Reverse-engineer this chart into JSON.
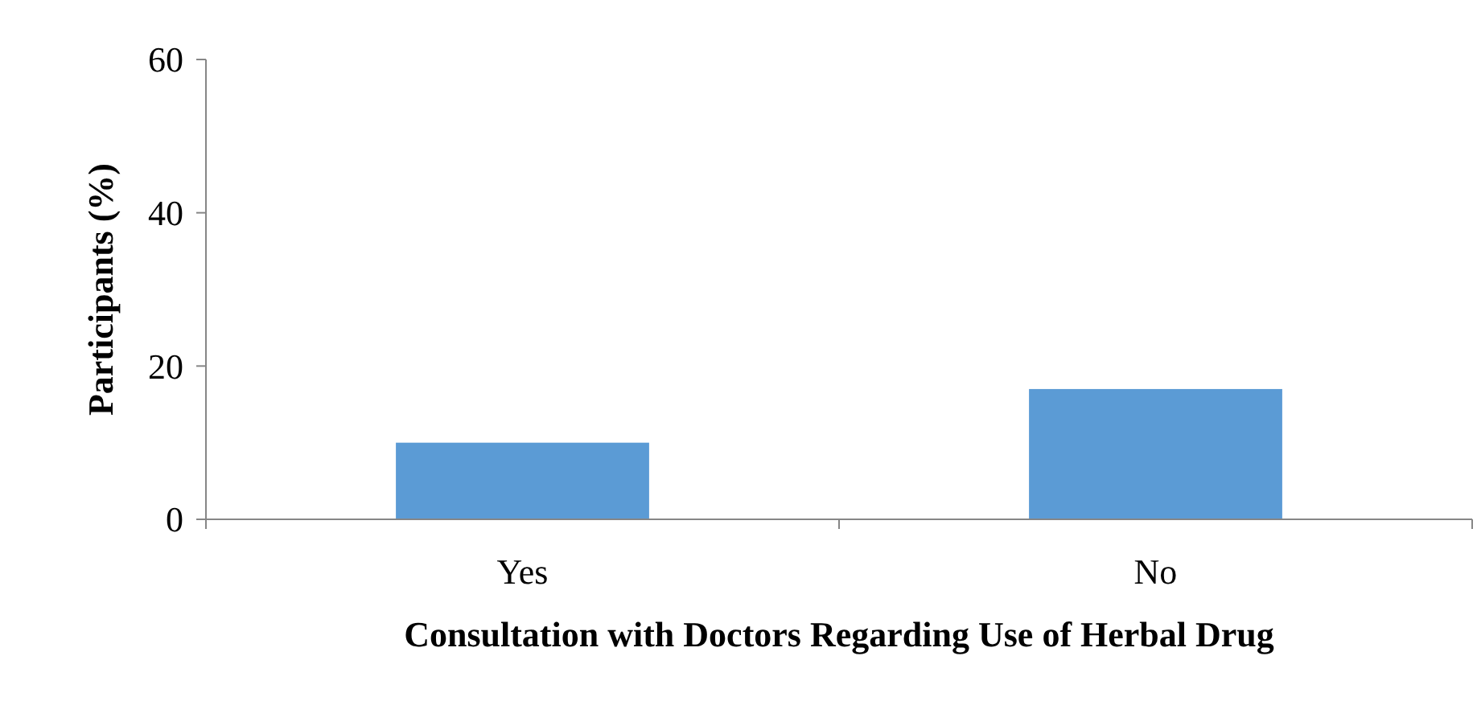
{
  "chart_data": {
    "type": "bar",
    "xlabel": "Consultation with Doctors Regarding Use of Herbal Drug",
    "ylabel": "Participants (%)",
    "categories": [
      "Yes",
      "No"
    ],
    "values": [
      10,
      17
    ],
    "color": "#5b9bd5",
    "ylim": [
      0,
      60
    ],
    "yticks": [
      0,
      20,
      40,
      60
    ],
    "grid": false
  }
}
